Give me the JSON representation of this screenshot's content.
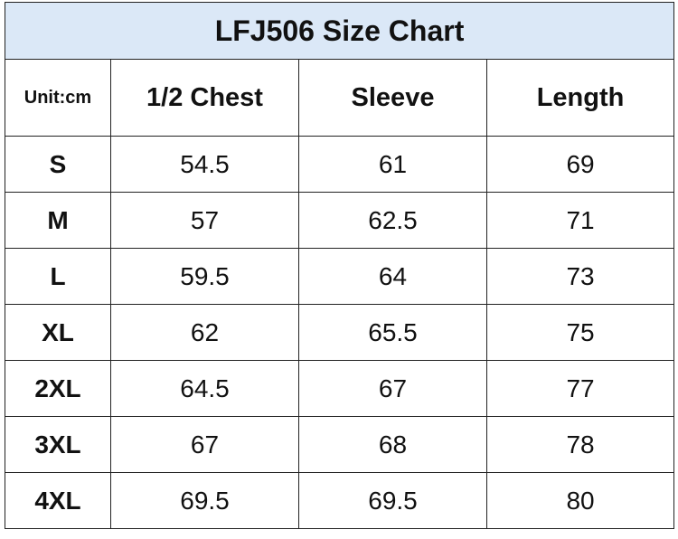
{
  "header": {
    "title": "LFJ506 Size Chart"
  },
  "table": {
    "columns": [
      "Unit:cm",
      "1/2 Chest",
      "Sleeve",
      "Length"
    ],
    "rows": [
      [
        "S",
        54.5,
        61,
        69
      ],
      [
        "M",
        57,
        62.5,
        71
      ],
      [
        "L",
        59.5,
        64,
        73
      ],
      [
        "XL",
        62,
        65.5,
        75
      ],
      [
        "2XL",
        64.5,
        67,
        77
      ],
      [
        "3XL",
        67,
        68,
        78
      ],
      [
        "4XL",
        69.5,
        69.5,
        80
      ]
    ]
  }
}
